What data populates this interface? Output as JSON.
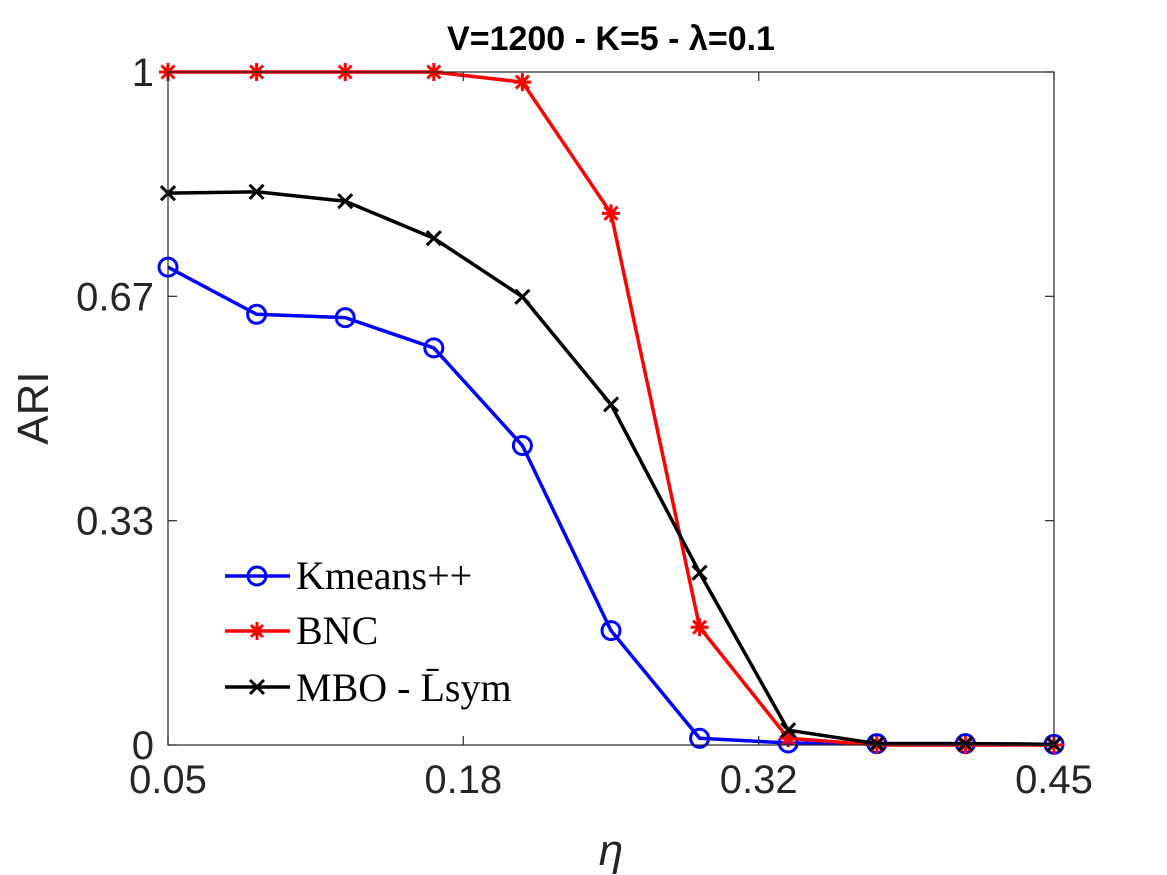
{
  "chart_data": {
    "type": "line",
    "title": "V=1200 - K=5 - λ=0.1",
    "xlabel": "η",
    "ylabel": "ARI",
    "xlim": [
      0.05,
      0.45
    ],
    "ylim": [
      0,
      1
    ],
    "xticks": [
      0.05,
      0.1833,
      0.3167,
      0.45
    ],
    "xtick_labels": [
      "0.05",
      "0.18",
      "0.32",
      "0.45"
    ],
    "yticks": [
      0,
      0.3333,
      0.6667,
      1
    ],
    "ytick_labels": [
      "0",
      "0.33",
      "0.67",
      "1"
    ],
    "grid": false,
    "legend_position": "lower-left",
    "x": [
      0.05,
      0.09,
      0.13,
      0.17,
      0.21,
      0.25,
      0.29,
      0.33,
      0.37,
      0.41,
      0.45
    ],
    "series": [
      {
        "name": "Kmeans++",
        "color": "#0000ff",
        "marker": "circle",
        "values": [
          0.71,
          0.64,
          0.635,
          0.59,
          0.445,
          0.17,
          0.01,
          0.003,
          0.002,
          0.002,
          0.001
        ]
      },
      {
        "name": "BNC",
        "color": "#ff0000",
        "marker": "asterisk",
        "values": [
          1.0,
          1.0,
          1.0,
          1.0,
          0.985,
          0.79,
          0.175,
          0.01,
          0.0,
          0.0,
          0.0
        ]
      },
      {
        "name": "MBO - L̄sym",
        "color": "#000000",
        "marker": "x",
        "values": [
          0.82,
          0.822,
          0.808,
          0.753,
          0.666,
          0.506,
          0.256,
          0.022,
          0.002,
          0.002,
          0.001
        ]
      }
    ]
  }
}
